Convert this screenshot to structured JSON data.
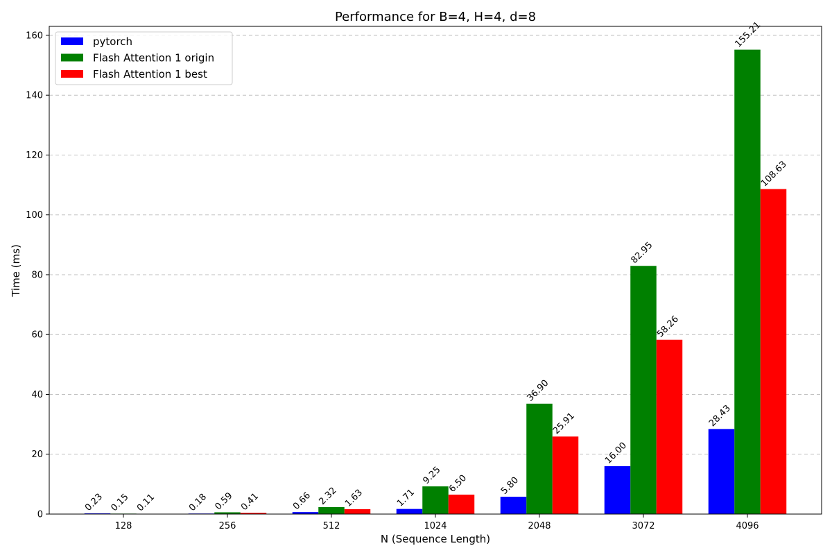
{
  "chart_data": {
    "type": "bar",
    "title": "Performance for B=4, H=4, d=8",
    "xlabel": "N (Sequence Length)",
    "ylabel": "Time (ms)",
    "categories": [
      "128",
      "256",
      "512",
      "1024",
      "2048",
      "3072",
      "4096"
    ],
    "ylim": [
      0,
      163
    ],
    "yticks": [
      0,
      20,
      40,
      60,
      80,
      100,
      120,
      140,
      160
    ],
    "grid": "y",
    "legend_position": "top-left",
    "series": [
      {
        "name": "pytorch",
        "color": "#0000ff",
        "values": [
          0.23,
          0.18,
          0.66,
          1.71,
          5.8,
          16.0,
          28.43
        ]
      },
      {
        "name": "Flash Attention 1 origin",
        "color": "#008000",
        "values": [
          0.15,
          0.59,
          2.32,
          9.25,
          36.9,
          82.95,
          155.21
        ]
      },
      {
        "name": "Flash Attention 1 best",
        "color": "#ff0000",
        "values": [
          0.11,
          0.41,
          1.63,
          6.5,
          25.91,
          58.26,
          108.63
        ]
      }
    ]
  }
}
